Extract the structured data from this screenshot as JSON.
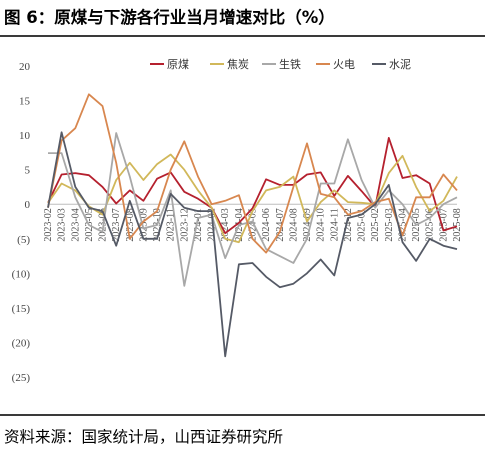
{
  "figure": {
    "title": "图 6：原煤与下游各行业当月增速对比（%）",
    "source": "资料来源：国家统计局，山西证券研究所"
  },
  "chart_data": {
    "type": "line",
    "ylim": [
      -25,
      20
    ],
    "yticks": [
      20,
      15,
      10,
      5,
      0,
      -5,
      -10,
      -15,
      -20,
      -25
    ],
    "ytick_labels": [
      "20",
      "15",
      "10",
      "5",
      "0",
      "(5)",
      "(10)",
      "(15)",
      "(20)",
      "(25)"
    ],
    "grid": false,
    "legend_position": "top-right",
    "categories": [
      "2023-02",
      "2023-03",
      "2023-04",
      "2023-05",
      "2023-06",
      "2023-07",
      "2023-08",
      "2023-09",
      "2023-10",
      "2023-11",
      "2023-12",
      "2024-01",
      "2024-02",
      "2024-03",
      "2024-04",
      "2024-05",
      "2024-06",
      "2024-07",
      "2024-08",
      "2024-09",
      "2024-10",
      "2024-11",
      "2024-12",
      "2025-01",
      "2025-02",
      "2025-03",
      "2025-04",
      "2025-05",
      "2025-06",
      "2025-07",
      "2025-08"
    ],
    "series": [
      {
        "name": "原煤",
        "color": "#b5202e",
        "values": [
          0.2,
          4.3,
          4.5,
          4.2,
          2.5,
          0.1,
          2.0,
          0.5,
          3.7,
          4.6,
          1.8,
          0.8,
          -0.5,
          -4.2,
          -2.7,
          -0.6,
          3.6,
          2.8,
          2.8,
          4.3,
          4.6,
          1.2,
          4.1,
          1.9,
          -0.4,
          9.6,
          3.8,
          4.2,
          3.0,
          -3.8,
          -3.2
        ]
      },
      {
        "name": "焦炭",
        "color": "#d1b85a",
        "values": [
          0.2,
          3.0,
          2.0,
          -0.3,
          -1.5,
          3.5,
          6.0,
          3.5,
          5.8,
          7.2,
          5.0,
          2.0,
          -0.5,
          -5.0,
          -5.5,
          -1.0,
          2.0,
          2.5,
          4.0,
          -2.5,
          0.3,
          2.0,
          0.3,
          0.2,
          0.0,
          4.5,
          7.0,
          2.5,
          -1.0,
          0.5,
          4.0
        ]
      },
      {
        "name": "生铁",
        "color": "#a8a8a8",
        "values": [
          7.4,
          7.4,
          1.0,
          -3.0,
          -4.0,
          10.3,
          4.0,
          -3.5,
          -3.0,
          2.0,
          -11.8,
          -2.0,
          -1.5,
          -7.8,
          -3.0,
          -2.5,
          -6.5,
          -7.5,
          -8.5,
          -5.0,
          3.0,
          3.0,
          9.4,
          3.5,
          -0.5,
          2.0,
          0.0,
          -3.0,
          -2.0,
          0.0,
          1.0
        ]
      },
      {
        "name": "火电",
        "color": "#d8874f",
        "values": [
          -0.5,
          9.2,
          11.0,
          15.9,
          14.2,
          6.0,
          -5.0,
          -2.5,
          -1.0,
          5.0,
          9.1,
          4.0,
          0.0,
          0.5,
          1.3,
          -5.0,
          -7.0,
          -4.0,
          2.5,
          8.8,
          1.5,
          1.0,
          -1.5,
          -1.0,
          0.3,
          0.8,
          -4.5,
          1.0,
          1.0,
          4.3,
          2.0
        ]
      },
      {
        "name": "水泥",
        "color": "#555a66",
        "values": [
          -0.5,
          10.4,
          2.5,
          -0.5,
          -1.0,
          -6.0,
          0.5,
          -5.0,
          -5.0,
          1.5,
          -0.5,
          -1.0,
          -1.0,
          -22.0,
          -8.7,
          -8.5,
          -10.5,
          -12.0,
          -11.5,
          -10.0,
          -8.0,
          -10.3,
          -2.0,
          -1.5,
          0.0,
          2.8,
          -5.5,
          -8.2,
          -5.0,
          -6.0,
          -6.5
        ]
      }
    ]
  }
}
